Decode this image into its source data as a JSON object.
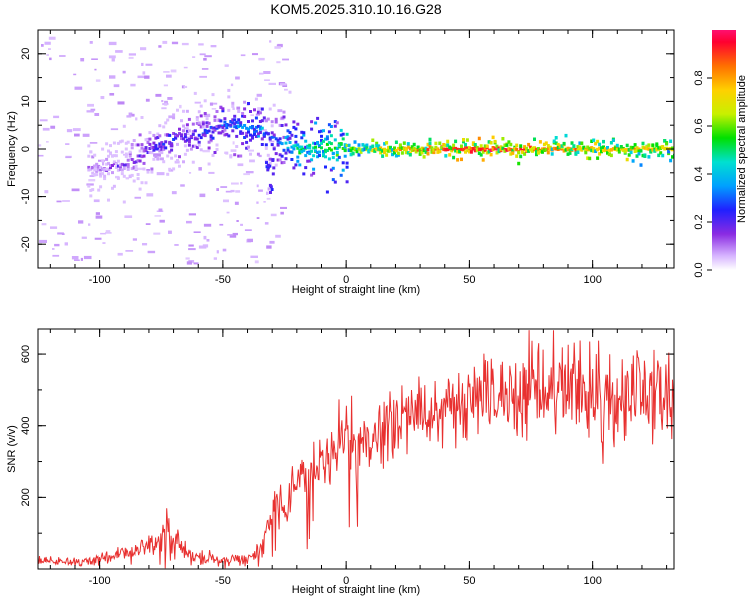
{
  "title": "KOM5.2025.310.10.16.G28",
  "chart_data": [
    {
      "type": "heatmap",
      "name": "spectrogram",
      "xlabel": "Height of straight line (km)",
      "ylabel": "Frequency (Hz)",
      "xlim": [
        -125,
        133
      ],
      "ylim": [
        -25,
        25
      ],
      "xticks": [
        -100,
        -50,
        0,
        50,
        100
      ],
      "yticks": [
        -20,
        -10,
        0,
        10,
        20
      ],
      "colorbar": {
        "label": "Normalized spectral amplitude",
        "range": [
          0,
          1
        ],
        "ticks": [
          "0.0",
          "0.2",
          "0.4",
          "0.6",
          "0.8"
        ],
        "tick_values": [
          0.0,
          0.2,
          0.4,
          0.6,
          0.8
        ]
      },
      "ridge": {
        "x": [
          -100,
          -90,
          -80,
          -70,
          -60,
          -50,
          -40,
          -35,
          -30,
          -25,
          -20,
          -10,
          0,
          10,
          30,
          50,
          70,
          90,
          100,
          110,
          130
        ],
        "freq": [
          -4,
          -3,
          0,
          2,
          3,
          5,
          4,
          4,
          2,
          1,
          0,
          0,
          0,
          0,
          0,
          0,
          0,
          0,
          0,
          0,
          0
        ],
        "amplitude": [
          0.1,
          0.15,
          0.2,
          0.22,
          0.25,
          0.3,
          0.35,
          0.35,
          0.25,
          0.4,
          0.5,
          0.55,
          0.6,
          0.7,
          0.85,
          0.95,
          0.9,
          0.8,
          0.75,
          0.8,
          0.7
        ]
      }
    },
    {
      "type": "line",
      "name": "snr",
      "xlabel": "Height of straight line (km)",
      "ylabel": "SNR (v/v)",
      "xlim": [
        -125,
        133
      ],
      "ylim": [
        0,
        670
      ],
      "xticks": [
        -100,
        -50,
        0,
        50,
        100
      ],
      "yticks": [
        200,
        400,
        600
      ],
      "color": "#e8302f",
      "series": [
        {
          "name": "SNR",
          "x": [
            -125,
            -110,
            -95,
            -85,
            -80,
            -75,
            -72,
            -70,
            -65,
            -60,
            -50,
            -40,
            -35,
            -30,
            -27,
            -25,
            -22,
            -20,
            -15,
            -10,
            -5,
            0,
            2,
            5,
            10,
            15,
            20,
            25,
            30,
            35,
            40,
            45,
            50,
            55,
            60,
            65,
            70,
            75,
            80,
            85,
            90,
            95,
            100,
            103,
            104,
            105,
            107,
            110,
            115,
            120,
            125,
            130,
            133
          ],
          "y": [
            20,
            20,
            30,
            50,
            60,
            80,
            100,
            70,
            45,
            30,
            25,
            25,
            60,
            150,
            200,
            140,
            230,
            240,
            270,
            300,
            330,
            400,
            320,
            340,
            370,
            380,
            410,
            440,
            420,
            430,
            460,
            440,
            470,
            490,
            480,
            480,
            490,
            500,
            480,
            490,
            500,
            490,
            500,
            540,
            300,
            520,
            480,
            500,
            490,
            500,
            500,
            490,
            480
          ]
        }
      ]
    }
  ]
}
